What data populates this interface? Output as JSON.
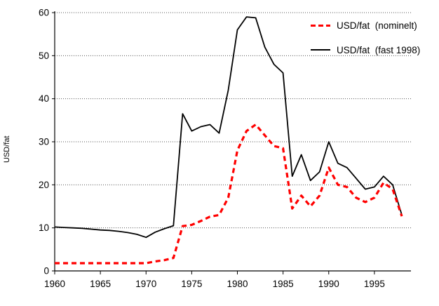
{
  "chart": {
    "ylabel": "USD/fat",
    "legend": [
      {
        "label": "USD/fat  (nominelt)",
        "color": "#ff0000",
        "style": "dashed"
      },
      {
        "label": "USD/fat  (fast 1998)",
        "color": "#000000",
        "style": "solid"
      }
    ]
  },
  "chart_data": {
    "type": "line",
    "title": "",
    "xlabel": "",
    "ylabel": "USD/fat",
    "xlim": [
      1960,
      1999
    ],
    "ylim": [
      0,
      60
    ],
    "xticks": [
      1960,
      1965,
      1970,
      1975,
      1980,
      1985,
      1990,
      1995
    ],
    "yticks": [
      0,
      10,
      20,
      30,
      40,
      50,
      60
    ],
    "grid": "horizontal-dotted",
    "legend_position": "top-right",
    "x": [
      1960,
      1961,
      1962,
      1963,
      1964,
      1965,
      1966,
      1967,
      1968,
      1969,
      1970,
      1971,
      1972,
      1973,
      1974,
      1975,
      1976,
      1977,
      1978,
      1979,
      1980,
      1981,
      1982,
      1983,
      1984,
      1985,
      1986,
      1987,
      1988,
      1989,
      1990,
      1991,
      1992,
      1993,
      1994,
      1995,
      1996,
      1997,
      1998
    ],
    "series": [
      {
        "name": "USD/fat (nominelt)",
        "color": "#ff0000",
        "style": "dashed",
        "values": [
          1.8,
          1.8,
          1.8,
          1.8,
          1.8,
          1.8,
          1.8,
          1.8,
          1.8,
          1.8,
          1.8,
          2.2,
          2.5,
          3.0,
          10.4,
          10.7,
          11.6,
          12.6,
          13.0,
          17.0,
          28.0,
          32.5,
          34.0,
          31.5,
          29.0,
          28.5,
          14.5,
          17.5,
          15.0,
          17.5,
          24.0,
          20.0,
          19.5,
          17.0,
          16.0,
          17.0,
          20.5,
          19.0,
          12.7
        ]
      },
      {
        "name": "USD/fat (fast 1998)",
        "color": "#000000",
        "style": "solid",
        "values": [
          10.2,
          10.1,
          10.0,
          9.9,
          9.7,
          9.5,
          9.4,
          9.2,
          8.9,
          8.5,
          7.8,
          9.0,
          9.8,
          10.5,
          36.5,
          32.5,
          33.5,
          34.0,
          32.0,
          42.0,
          56.0,
          59.0,
          58.8,
          52.0,
          48.0,
          46.0,
          22.0,
          27.0,
          21.0,
          23.0,
          30.0,
          25.0,
          24.0,
          21.5,
          19.0,
          19.5,
          22.0,
          20.0,
          13.0
        ]
      }
    ]
  }
}
